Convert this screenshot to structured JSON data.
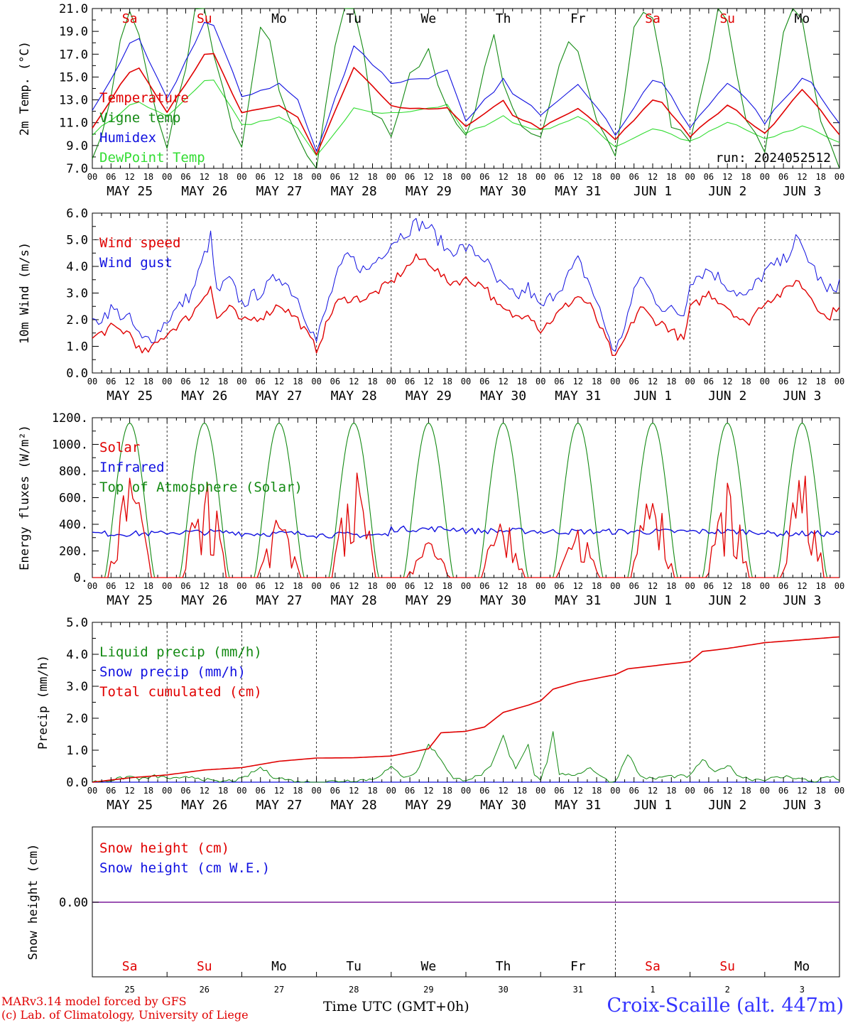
{
  "run_label": "run: 2024052512",
  "days": [
    "MAY 25",
    "MAY 26",
    "MAY 27",
    "MAY 28",
    "MAY 29",
    "MAY 30",
    "MAY 31",
    "JUN  1",
    "JUN  2",
    "JUN  3"
  ],
  "weekdays": [
    "Sa",
    "Su",
    "Mo",
    "Tu",
    "We",
    "Th",
    "Fr",
    "Sa",
    "Su",
    "Mo"
  ],
  "weekend_flags": [
    true,
    true,
    false,
    false,
    false,
    false,
    false,
    true,
    true,
    false
  ],
  "day_numbers": [
    "25",
    "26",
    "27",
    "28",
    "29",
    "30",
    "31",
    "1",
    "2",
    "3"
  ],
  "hour_ticks": [
    "00",
    "06",
    "12",
    "18"
  ],
  "last_tick": "00",
  "colors": {
    "red": "#e00000",
    "green": "#138a13",
    "blue": "#1010e0",
    "lightgreen": "#33dd33",
    "purple": "#7a1a9a"
  },
  "footer": {
    "model": "MARv3.14 model forced by GFS",
    "lab": "(c) Lab. of Climatology, University of Liege",
    "time_label": "Time UTC (GMT+0h)",
    "month_may": "MAY",
    "month_jun": "JUN",
    "station": "Croix-Scaille (alt. 447m)"
  },
  "chart_data": [
    {
      "type": "line",
      "ylabel": "2m Temp. (°C)",
      "ylim": [
        7.0,
        21.0
      ],
      "yticks": [
        "7.0",
        "9.0",
        "11.0",
        "13.0",
        "15.0",
        "17.0",
        "19.0",
        "21.0"
      ],
      "x_unit": "hours since 2024-05-25 00 UTC",
      "series": [
        {
          "name": "Temperature",
          "color": "red",
          "x": [
            0,
            12,
            15,
            24,
            36,
            39,
            48,
            60,
            66,
            72,
            84,
            87,
            96,
            108,
            114,
            120,
            132,
            135,
            144,
            156,
            159,
            168,
            180,
            183,
            192,
            204,
            207,
            216,
            228,
            231,
            240
          ],
          "values": [
            10.5,
            15.5,
            15.8,
            12.0,
            16.9,
            17.0,
            11.8,
            12.5,
            11.5,
            8.2,
            15.8,
            15.0,
            12.4,
            12.1,
            12.4,
            10.6,
            12.9,
            11.7,
            10.5,
            12.2,
            11.6,
            9.5,
            13.0,
            12.8,
            9.8,
            12.5,
            12.0,
            10.0,
            14.0,
            13.0,
            10.0
          ]
        },
        {
          "name": "Vigne temp",
          "color": "green",
          "x": [
            0,
            6,
            10,
            13,
            16,
            22,
            24,
            30,
            33,
            36,
            40,
            46,
            48,
            54,
            57,
            60,
            66,
            72,
            78,
            81,
            84,
            88,
            90,
            96,
            102,
            108,
            114,
            120,
            126,
            129,
            132,
            138,
            144,
            150,
            153,
            156,
            162,
            168,
            174,
            177,
            180,
            186,
            192,
            198,
            201,
            204,
            210,
            216,
            222,
            225,
            228,
            234,
            240
          ],
          "values": [
            7.5,
            13.0,
            20.5,
            21.0,
            18.0,
            9.5,
            9.0,
            16.0,
            21.0,
            21.0,
            16.0,
            9.0,
            8.5,
            19.0,
            18.0,
            14.0,
            10.0,
            7.0,
            18.0,
            21.0,
            21.0,
            16.0,
            12.0,
            10.0,
            15.0,
            17.5,
            12.0,
            9.5,
            15.5,
            19.0,
            14.0,
            10.5,
            10.0,
            16.0,
            18.5,
            17.0,
            11.0,
            8.5,
            19.0,
            21.0,
            20.0,
            11.0,
            9.0,
            16.0,
            21.0,
            20.0,
            11.0,
            8.5,
            19.0,
            21.0,
            20.0,
            11.0,
            7.0
          ]
        },
        {
          "name": "Humidex",
          "color": "blue",
          "x": [
            0,
            12,
            15,
            24,
            36,
            39,
            48,
            60,
            66,
            72,
            84,
            87,
            96,
            108,
            114,
            120,
            132,
            135,
            144,
            156,
            159,
            168,
            180,
            183,
            192,
            204,
            207,
            216,
            228,
            231,
            240
          ],
          "values": [
            12.0,
            17.8,
            18.2,
            13.0,
            19.8,
            19.5,
            13.3,
            14.4,
            13.0,
            8.4,
            17.8,
            17.0,
            14.5,
            15.0,
            15.5,
            11.0,
            14.8,
            13.5,
            11.8,
            14.5,
            13.5,
            10.0,
            14.8,
            14.5,
            10.5,
            14.6,
            14.0,
            11.0,
            15.0,
            14.5,
            11.0
          ]
        },
        {
          "name": "DewPoint Temp",
          "color": "lightgreen",
          "x": [
            0,
            12,
            15,
            24,
            36,
            39,
            48,
            60,
            66,
            72,
            84,
            87,
            96,
            108,
            114,
            120,
            132,
            135,
            144,
            156,
            159,
            168,
            180,
            183,
            192,
            204,
            207,
            216,
            228,
            231,
            240
          ],
          "values": [
            10.0,
            12.5,
            12.8,
            11.5,
            14.6,
            14.8,
            10.8,
            11.4,
            10.6,
            8.0,
            12.2,
            12.0,
            11.8,
            12.3,
            12.5,
            10.0,
            11.6,
            11.0,
            10.3,
            11.5,
            11.0,
            8.9,
            10.5,
            10.3,
            9.3,
            11.0,
            10.8,
            9.5,
            10.7,
            10.5,
            9.2
          ]
        }
      ]
    },
    {
      "type": "line",
      "ylabel": "10m Wind (m/s)",
      "ylim": [
        0.0,
        6.0
      ],
      "yticks": [
        "0.0",
        "1.0",
        "2.0",
        "3.0",
        "4.0",
        "5.0",
        "6.0"
      ],
      "x_unit": "hours since 2024-05-25 00 UTC",
      "series": [
        {
          "name": "Wind speed",
          "color": "red",
          "x": [
            0,
            6,
            12,
            16,
            20,
            24,
            32,
            38,
            40,
            44,
            48,
            56,
            60,
            66,
            72,
            78,
            82,
            88,
            96,
            104,
            108,
            114,
            120,
            126,
            130,
            136,
            140,
            144,
            152,
            156,
            160,
            168,
            172,
            176,
            180,
            184,
            190,
            192,
            198,
            204,
            210,
            216,
            222,
            226,
            230,
            236,
            240
          ],
          "values": [
            1.3,
            1.7,
            1.5,
            0.7,
            1.0,
            1.5,
            2.2,
            3.3,
            2.0,
            2.5,
            1.9,
            2.2,
            2.6,
            2.0,
            0.9,
            2.6,
            2.8,
            2.8,
            3.4,
            4.3,
            4.2,
            3.4,
            3.5,
            3.3,
            2.5,
            2.1,
            2.3,
            1.6,
            2.5,
            2.9,
            2.5,
            0.5,
            1.5,
            2.5,
            2.0,
            1.8,
            1.2,
            2.4,
            3.0,
            2.5,
            1.8,
            2.7,
            3.0,
            3.5,
            3.0,
            2.0,
            2.6
          ]
        },
        {
          "name": "Wind gust",
          "color": "blue",
          "x": [
            0,
            6,
            12,
            16,
            20,
            24,
            32,
            38,
            40,
            44,
            48,
            56,
            60,
            66,
            72,
            78,
            82,
            88,
            96,
            104,
            108,
            114,
            120,
            126,
            130,
            136,
            140,
            144,
            152,
            156,
            160,
            168,
            172,
            176,
            180,
            184,
            190,
            192,
            198,
            204,
            210,
            216,
            222,
            226,
            230,
            236,
            240
          ],
          "values": [
            1.8,
            2.4,
            2.0,
            1.2,
            1.4,
            2.0,
            3.0,
            5.1,
            3.0,
            3.5,
            2.6,
            3.2,
            3.7,
            2.8,
            1.2,
            3.5,
            4.4,
            3.8,
            4.9,
            5.6,
            5.5,
            4.6,
            4.7,
            4.3,
            3.4,
            2.8,
            3.2,
            2.4,
            3.5,
            4.2,
            3.3,
            0.7,
            2.2,
            3.7,
            2.9,
            2.4,
            2.2,
            3.5,
            3.9,
            3.3,
            2.8,
            3.8,
            4.2,
            5.0,
            4.3,
            3.0,
            3.4
          ]
        }
      ]
    },
    {
      "type": "line",
      "ylabel": "Energy fluxes (W/m²)",
      "ylim": [
        0,
        1200
      ],
      "yticks": [
        "0.",
        "200.",
        "400.",
        "600.",
        "800.",
        "1000.",
        "1200."
      ],
      "x_unit": "hours since 2024-05-25 00 UTC",
      "series": [
        {
          "name": "Solar",
          "color": "red",
          "peaks": [
            780,
            840,
            470,
            840,
            270,
            480,
            370,
            670,
            720,
            880
          ]
        },
        {
          "name": "Infrared",
          "color": "blue",
          "values_daily": [
            330,
            340,
            330,
            320,
            365,
            350,
            345,
            345,
            345,
            330
          ]
        },
        {
          "name": "Top of Atmosphere (Solar)",
          "color": "green",
          "peak": 1160
        }
      ]
    },
    {
      "type": "line",
      "ylabel": "Precip (mm/h)",
      "ylim": [
        0.0,
        5.5
      ],
      "yticks": [
        "0.0",
        "1.0",
        "2.0",
        "3.0",
        "4.0",
        "5.0"
      ],
      "x_unit": "hours since 2024-05-25 00 UTC",
      "series": [
        {
          "name": "Liquid precip (mm/h)",
          "color": "green",
          "x": [
            0,
            8,
            12,
            16,
            20,
            28,
            32,
            36,
            40,
            48,
            54,
            58,
            62,
            66,
            72,
            90,
            96,
            100,
            104,
            108,
            112,
            116,
            120,
            124,
            128,
            132,
            134,
            136,
            140,
            142,
            144,
            146,
            148,
            150,
            152,
            156,
            160,
            166,
            168,
            172,
            176,
            180,
            184,
            192,
            196,
            200,
            204,
            208,
            212,
            216,
            224,
            228,
            232,
            236,
            240
          ],
          "values": [
            0.0,
            0.1,
            0.2,
            0.1,
            0.2,
            0.1,
            0.2,
            0.1,
            0.0,
            0.1,
            0.5,
            0.2,
            0.1,
            0.0,
            0.0,
            0.1,
            0.5,
            0.2,
            0.3,
            1.3,
            0.8,
            0.1,
            0.1,
            0.2,
            0.5,
            1.6,
            0.9,
            0.5,
            1.3,
            0.3,
            0.1,
            0.7,
            1.7,
            0.3,
            0.2,
            0.3,
            0.5,
            0.0,
            0.0,
            1.0,
            0.2,
            0.1,
            0.2,
            0.2,
            0.8,
            0.3,
            0.6,
            0.2,
            0.1,
            0.1,
            0.2,
            0.1,
            0.0,
            0.2,
            0.1
          ]
        },
        {
          "name": "Snow precip (mm/h)",
          "color": "blue",
          "x": [
            0,
            240
          ],
          "values": [
            0.0,
            0.0
          ]
        },
        {
          "name": "Total cumulated (cm)",
          "color": "red",
          "x": [
            0,
            12,
            24,
            36,
            48,
            60,
            72,
            84,
            96,
            108,
            112,
            120,
            126,
            132,
            140,
            144,
            148,
            156,
            168,
            172,
            180,
            192,
            196,
            204,
            216,
            228,
            240
          ],
          "values": [
            0.0,
            0.15,
            0.25,
            0.42,
            0.5,
            0.72,
            0.83,
            0.84,
            0.9,
            1.15,
            1.7,
            1.75,
            1.9,
            2.4,
            2.65,
            2.8,
            3.2,
            3.45,
            3.7,
            3.9,
            4.0,
            4.15,
            4.5,
            4.6,
            4.8,
            4.9,
            5.0
          ]
        }
      ]
    },
    {
      "type": "line",
      "ylabel": "Snow height (cm)",
      "ytick": "0.00",
      "x_unit": "hours since 2024-05-25 00 UTC",
      "series": [
        {
          "name": "Snow height (cm)",
          "color": "red",
          "x": [
            0,
            240
          ],
          "values": [
            0.0,
            0.0
          ]
        },
        {
          "name": "Snow height (cm W.E.)",
          "color": "blue",
          "x": [
            0,
            240
          ],
          "values": [
            0.0,
            0.0
          ]
        }
      ]
    }
  ]
}
